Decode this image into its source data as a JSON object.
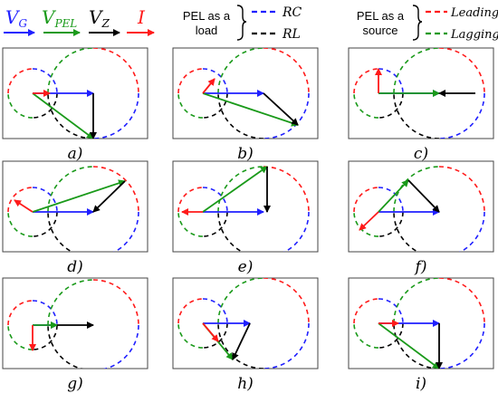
{
  "legend_left": {
    "items": [
      {
        "main": "V",
        "sub": "G",
        "color": "#1f1fff"
      },
      {
        "main": "V",
        "sub": "PEL",
        "color": "#1a9a1a"
      },
      {
        "main": "V",
        "sub": "Z",
        "color": "#000000"
      },
      {
        "main": "I",
        "sub": "",
        "color": "#ff1a1a"
      }
    ]
  },
  "legend_load": {
    "title_line1": "PEL as a",
    "title_line2": "load",
    "entries": [
      {
        "label": "RC",
        "color": "#1f1fff"
      },
      {
        "label": "RL",
        "color": "#000000"
      }
    ]
  },
  "legend_source": {
    "title_line1": "PEL as a",
    "title_line2": "source",
    "entries": [
      {
        "label": "Leading",
        "color": "#ff1a1a"
      },
      {
        "label": "Lagging",
        "color": "#1a9a1a"
      }
    ]
  },
  "panels": [
    {
      "label": "a)"
    },
    {
      "label": "b)"
    },
    {
      "label": "c)"
    },
    {
      "label": "d)"
    },
    {
      "label": "e)"
    },
    {
      "label": "f)"
    },
    {
      "label": "g)"
    },
    {
      "label": "h)"
    },
    {
      "label": "i)"
    }
  ],
  "colors": {
    "blue": "#1f1fff",
    "green": "#1a9a1a",
    "black": "#000000",
    "red": "#ff1a1a"
  }
}
